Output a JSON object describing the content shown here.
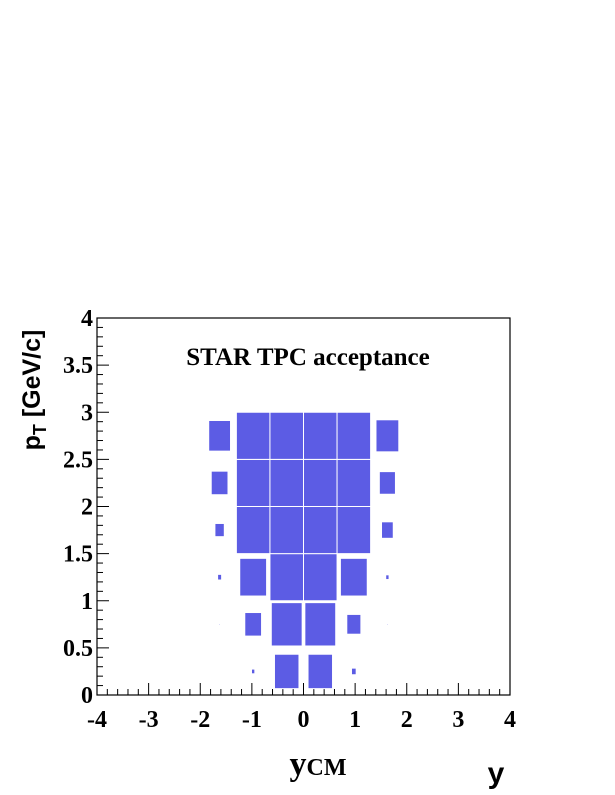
{
  "chart_data": {
    "type": "box2d",
    "title": "STAR TPC acceptance",
    "x_label": [
      "y",
      "CM"
    ],
    "y_label": [
      "p",
      "T",
      " [GeV/c]"
    ],
    "corner_label": "y",
    "color": "#5c5ce4",
    "bins_x": [
      -1.95,
      -1.3,
      -0.65,
      0,
      0.65,
      1.3,
      1.95
    ],
    "bins_y": [
      0,
      0.5,
      1,
      1.5,
      2,
      2.5,
      3
    ],
    "values": [
      [
        0,
        10,
        73,
        73,
        14,
        0
      ],
      [
        3,
        50,
        92,
        92,
        42,
        3
      ],
      [
        12,
        80,
        100,
        100,
        80,
        10
      ],
      [
        28,
        100,
        100,
        100,
        100,
        35
      ],
      [
        50,
        100,
        100,
        100,
        100,
        48
      ],
      [
        65,
        100,
        100,
        100,
        100,
        68
      ]
    ],
    "xlim": [
      -4,
      4
    ],
    "ylim": [
      0,
      4
    ],
    "xticks": [
      -4,
      -3,
      -2,
      -1,
      0,
      1,
      2,
      3,
      4
    ],
    "yticks": [
      0,
      0.5,
      1,
      1.5,
      2,
      2.5,
      3,
      3.5,
      4
    ],
    "x_minor_divisions": 5,
    "y_minor_divisions": 5
  }
}
